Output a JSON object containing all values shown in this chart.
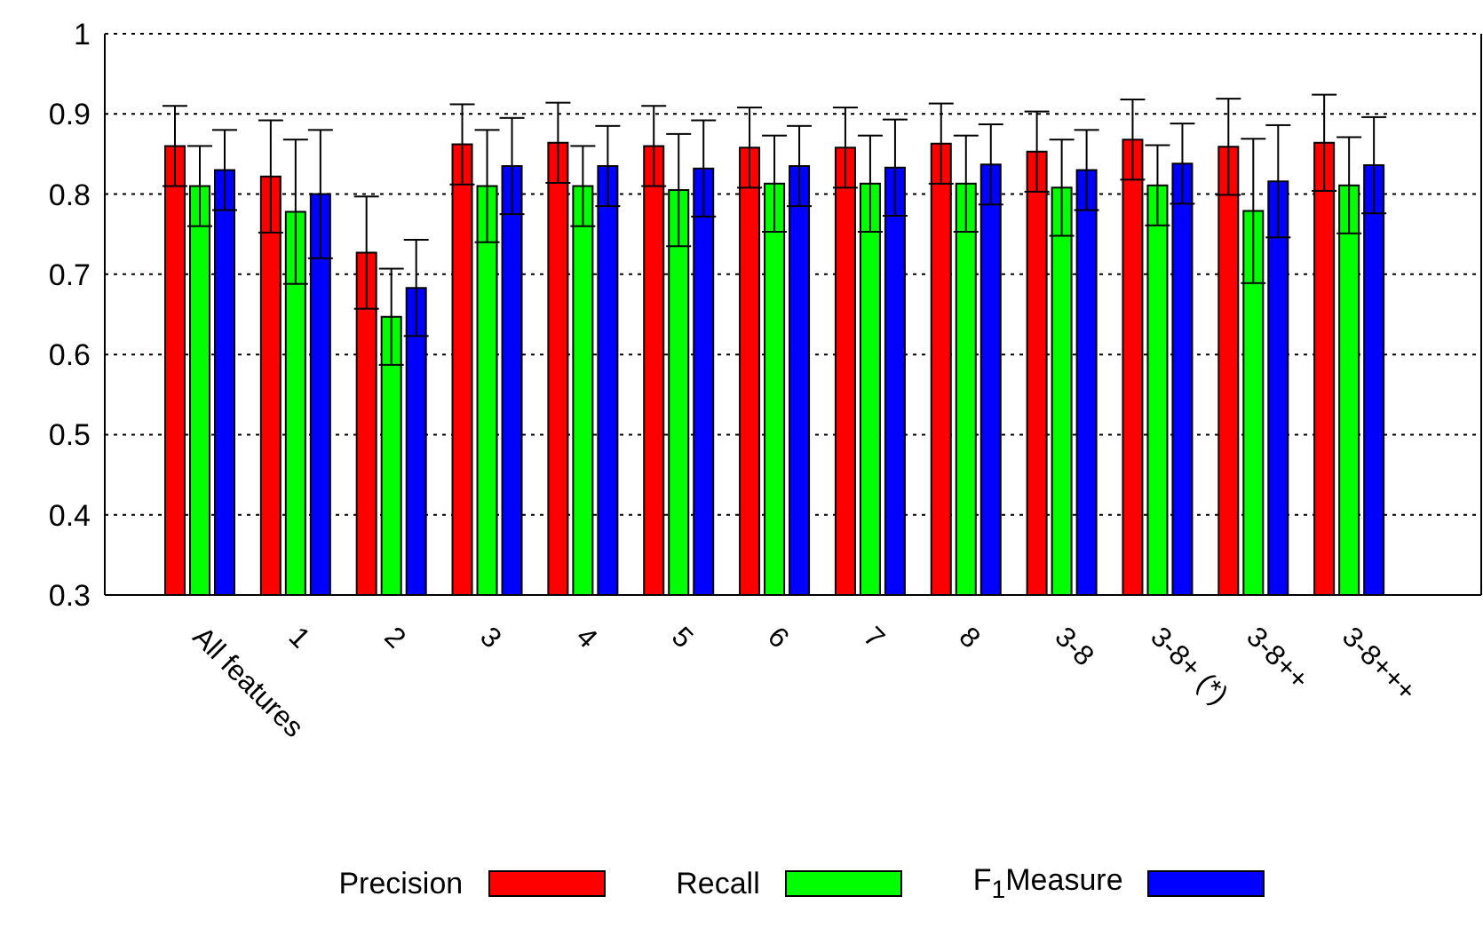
{
  "chart_data": {
    "type": "bar",
    "categories": [
      "All features",
      "1",
      "2",
      "3",
      "4",
      "5",
      "6",
      "7",
      "8",
      "3-8",
      "3-8+ (*)",
      "3-8++",
      "3-8+++"
    ],
    "series": [
      {
        "name": "Precision",
        "color": "#ff0000",
        "values": [
          0.86,
          0.822,
          0.727,
          0.862,
          0.864,
          0.86,
          0.858,
          0.858,
          0.863,
          0.853,
          0.868,
          0.859,
          0.864
        ],
        "errors": [
          0.05,
          0.07,
          0.07,
          0.05,
          0.05,
          0.05,
          0.05,
          0.05,
          0.05,
          0.05,
          0.05,
          0.06,
          0.06
        ]
      },
      {
        "name": "Recall",
        "color": "#00ff00",
        "values": [
          0.81,
          0.778,
          0.647,
          0.81,
          0.81,
          0.805,
          0.813,
          0.813,
          0.813,
          0.808,
          0.811,
          0.779,
          0.811
        ],
        "errors": [
          0.05,
          0.09,
          0.06,
          0.07,
          0.05,
          0.07,
          0.06,
          0.06,
          0.06,
          0.06,
          0.05,
          0.09,
          0.06
        ]
      },
      {
        "name": "F$_{1}$Measure",
        "color": "#0000ff",
        "values": [
          0.83,
          0.8,
          0.683,
          0.835,
          0.835,
          0.832,
          0.835,
          0.833,
          0.837,
          0.83,
          0.838,
          0.816,
          0.836
        ],
        "errors": [
          0.05,
          0.08,
          0.06,
          0.06,
          0.05,
          0.06,
          0.05,
          0.06,
          0.05,
          0.05,
          0.05,
          0.07,
          0.06
        ]
      }
    ],
    "ylim": [
      0.3,
      1
    ],
    "yticks": [
      0.3,
      0.4,
      0.5,
      0.6,
      0.7,
      0.8,
      0.9,
      1
    ],
    "grid": "y",
    "legend": "bottom"
  }
}
